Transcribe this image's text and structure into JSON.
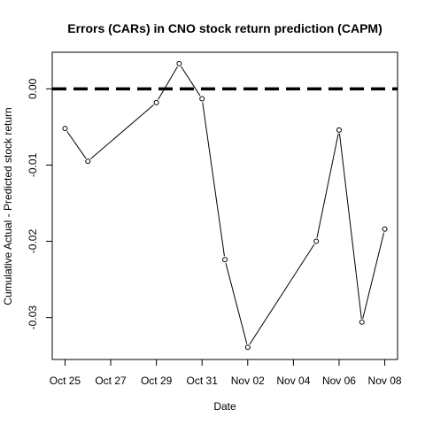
{
  "chart_data": {
    "type": "line",
    "title": "Errors (CARs) in CNO stock return prediction (CAPM)",
    "xlabel": "Date",
    "ylabel": "Cumulative Actual - Predicted stock return",
    "x_ticks": [
      {
        "date": "Oct 25",
        "label": "Oct 25"
      },
      {
        "date": "Oct 27",
        "label": "Oct 27"
      },
      {
        "date": "Oct 29",
        "label": "Oct 29"
      },
      {
        "date": "Oct 31",
        "label": "Oct 31"
      },
      {
        "date": "Nov 02",
        "label": "Nov 02"
      },
      {
        "date": "Nov 04",
        "label": "Nov 04"
      },
      {
        "date": "Nov 06",
        "label": "Nov 06"
      },
      {
        "date": "Nov 08",
        "label": "Nov 08"
      }
    ],
    "y_ticks": [
      {
        "value": 0.0,
        "label": "0.00"
      },
      {
        "value": -0.01,
        "label": "-0.01"
      },
      {
        "value": -0.02,
        "label": "-0.02"
      },
      {
        "value": -0.03,
        "label": "-0.03"
      }
    ],
    "xlim": [
      "Oct 25",
      "Nov 08"
    ],
    "ylim": [
      -0.0355,
      0.0048
    ],
    "reference_line": {
      "y": 0.0,
      "style": "dashed",
      "color": "#000000"
    },
    "series": [
      {
        "x": [
          "Oct 25",
          "Oct 26",
          "Oct 29",
          "Oct 30",
          "Oct 31",
          "Nov 01",
          "Nov 02",
          "Nov 05",
          "Nov 06",
          "Nov 07",
          "Nov 08"
        ],
        "y": [
          -0.0052,
          -0.0095,
          -0.0018,
          0.0033,
          -0.0013,
          -0.0224,
          -0.0339,
          -0.02,
          -0.0054,
          -0.0306,
          -0.0184
        ],
        "color": "#000000",
        "marker": "open-circle"
      }
    ],
    "grid": false
  }
}
